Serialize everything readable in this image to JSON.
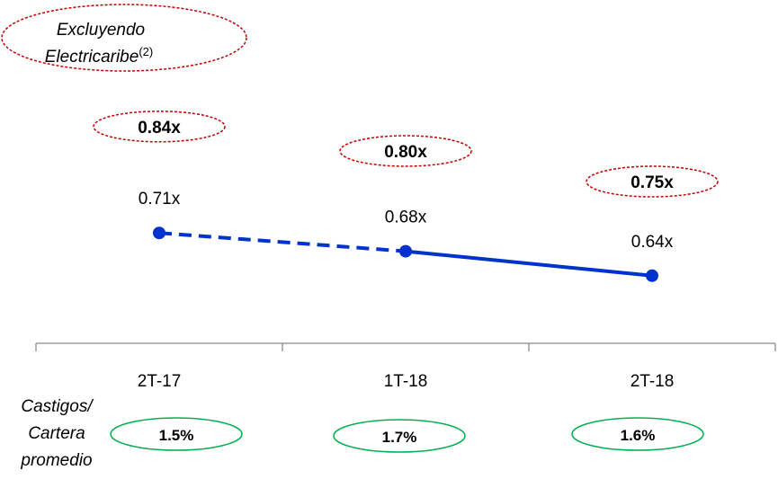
{
  "chart_data": {
    "type": "line",
    "categories": [
      "2T-17",
      "1T-18",
      "2T-18"
    ],
    "series": [
      {
        "values": [
          0.71,
          0.68,
          0.64
        ],
        "labels": [
          "0.71x",
          "0.68x",
          "0.64x"
        ],
        "color": "#0033CC",
        "segment_styles": [
          "dashed",
          "solid"
        ]
      }
    ],
    "ylim": [
      0.4,
      0.9
    ],
    "grid": false,
    "annotations": {
      "excluding_note": {
        "text": "Excluyendo",
        "text2": "Electricaribe",
        "superscript": "(2)",
        "color": "#C00000"
      },
      "excluding_values": {
        "values": [
          0.84,
          0.8,
          0.75
        ],
        "labels": [
          "0.84x",
          "0.80x",
          "0.75x"
        ],
        "color": "#C00000"
      },
      "writeoffs": {
        "label_lines": [
          "Castigos/",
          "Cartera",
          "promedio"
        ],
        "values": [
          1.5,
          1.7,
          1.6
        ],
        "labels": [
          "1.5%",
          "1.7%",
          "1.6%"
        ],
        "color": "#00B050"
      }
    }
  }
}
